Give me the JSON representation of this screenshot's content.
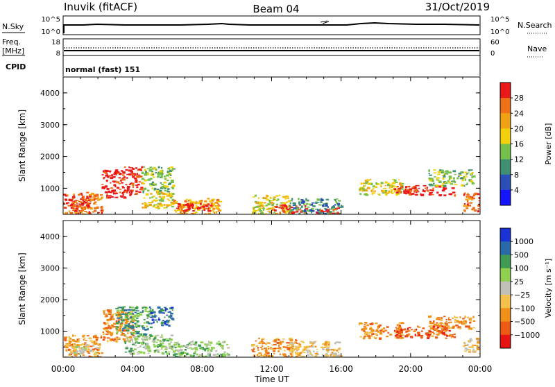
{
  "header": {
    "station": "Inuvik (fitACF)",
    "beam": "Beam 04",
    "date": "31/Oct/2019"
  },
  "top_panels": {
    "nsky_label": "N.Sky",
    "nsky_ticks": [
      "10^5",
      "10^0"
    ],
    "nsearch_label": "N.Search",
    "freq_label": "Freq.",
    "freq_unit": "[MHz]",
    "freq_ticks": [
      "18",
      "8"
    ],
    "nave_label": "Nave",
    "nave_ticks": [
      "60",
      "0"
    ],
    "cpid_label": "CPID",
    "cpid_value": "normal (fast) 151"
  },
  "chart_data": [
    {
      "type": "heatmap",
      "name": "power",
      "ylabel": "Slant Range [km]",
      "yticks": [
        "1000",
        "2000",
        "3000",
        "4000"
      ],
      "ylim": [
        180,
        4500
      ],
      "xlabel": "",
      "colorbar_label": "Power [dB]",
      "colorbar_ticks": [
        "4",
        "8",
        "12",
        "16",
        "20",
        "24",
        "28"
      ],
      "colorbar_colors": [
        "#1414ff",
        "#2a4fb8",
        "#3f8f72",
        "#74c04a",
        "#f2d10c",
        "#f0a213",
        "#ef7016",
        "#ea1818"
      ],
      "regions": [
        {
          "t0": 0.0,
          "t1": 2.2,
          "r0": 180,
          "r1": 900,
          "c": 6
        },
        {
          "t0": 0.0,
          "t1": 1.5,
          "r0": 400,
          "r1": 700,
          "c": 7
        },
        {
          "t0": 2.2,
          "t1": 3.5,
          "r0": 700,
          "r1": 1600,
          "c": 7
        },
        {
          "t0": 3.5,
          "t1": 4.5,
          "r0": 800,
          "r1": 1700,
          "c": 7
        },
        {
          "t0": 4.5,
          "t1": 6.3,
          "r0": 900,
          "r1": 1700,
          "c": 3
        },
        {
          "t0": 4.5,
          "t1": 6.3,
          "r0": 400,
          "r1": 900,
          "c": 4
        },
        {
          "t0": 6.3,
          "t1": 9.0,
          "r0": 200,
          "r1": 700,
          "c": 5
        },
        {
          "t0": 6.5,
          "t1": 8.5,
          "r0": 300,
          "r1": 550,
          "c": 7
        },
        {
          "t0": 10.8,
          "t1": 13.0,
          "r0": 200,
          "r1": 800,
          "c": 4
        },
        {
          "t0": 12.0,
          "t1": 14.0,
          "r0": 250,
          "r1": 500,
          "c": 7
        },
        {
          "t0": 13.0,
          "t1": 16.0,
          "r0": 200,
          "r1": 700,
          "c": 2
        },
        {
          "t0": 14.5,
          "t1": 15.8,
          "r0": 200,
          "r1": 400,
          "c": 7
        },
        {
          "t0": 17.0,
          "t1": 19.5,
          "r0": 800,
          "r1": 1300,
          "c": 4
        },
        {
          "t0": 19.0,
          "t1": 22.5,
          "r0": 800,
          "r1": 1100,
          "c": 7
        },
        {
          "t0": 21.0,
          "t1": 23.6,
          "r0": 1100,
          "r1": 1600,
          "c": 3
        },
        {
          "t0": 23.0,
          "t1": 24.0,
          "r0": 300,
          "r1": 900,
          "c": 6
        }
      ]
    },
    {
      "type": "heatmap",
      "name": "velocity",
      "ylabel": "Slant Range [km]",
      "yticks": [
        "1000",
        "2000",
        "3000",
        "4000"
      ],
      "ylim": [
        180,
        4500
      ],
      "xlabel": "Time UT",
      "xticks": [
        "00:00",
        "04:00",
        "08:00",
        "12:00",
        "16:00",
        "20:00",
        "00:00"
      ],
      "xlim": [
        0,
        24
      ],
      "colorbar_label": "Velocity [m s⁻¹]",
      "colorbar_ticks": [
        "1000",
        "500",
        "100",
        "25",
        "−25",
        "−100",
        "−500",
        "−1000"
      ],
      "colorbar_colors": [
        "#1a32d6",
        "#2a6aa8",
        "#3f9a52",
        "#8fd050",
        "#c0c0b8",
        "#f2c24a",
        "#f09018",
        "#ee5a14",
        "#e81414"
      ],
      "regions": [
        {
          "t0": 0.0,
          "t1": 2.2,
          "r0": 180,
          "r1": 900,
          "c": 6
        },
        {
          "t0": 0.3,
          "t1": 2.0,
          "r0": 300,
          "r1": 600,
          "c": 4
        },
        {
          "t0": 2.2,
          "t1": 4.0,
          "r0": 700,
          "r1": 1700,
          "c": 6
        },
        {
          "t0": 3.0,
          "t1": 5.0,
          "r0": 900,
          "r1": 1800,
          "c": 2
        },
        {
          "t0": 5.0,
          "t1": 6.3,
          "r0": 1200,
          "r1": 1800,
          "c": 1
        },
        {
          "t0": 3.5,
          "t1": 6.3,
          "r0": 300,
          "r1": 900,
          "c": 3
        },
        {
          "t0": 6.3,
          "t1": 9.5,
          "r0": 200,
          "r1": 700,
          "c": 3
        },
        {
          "t0": 10.8,
          "t1": 13.5,
          "r0": 200,
          "r1": 800,
          "c": 6
        },
        {
          "t0": 13.0,
          "t1": 16.0,
          "r0": 200,
          "r1": 700,
          "c": 5
        },
        {
          "t0": 17.0,
          "t1": 19.5,
          "r0": 800,
          "r1": 1300,
          "c": 6
        },
        {
          "t0": 19.0,
          "t1": 22.5,
          "r0": 800,
          "r1": 1200,
          "c": 7
        },
        {
          "t0": 21.0,
          "t1": 23.6,
          "r0": 1100,
          "r1": 1500,
          "c": 6
        },
        {
          "t0": 23.0,
          "t1": 24.0,
          "r0": 300,
          "r1": 800,
          "c": 5
        }
      ]
    }
  ]
}
